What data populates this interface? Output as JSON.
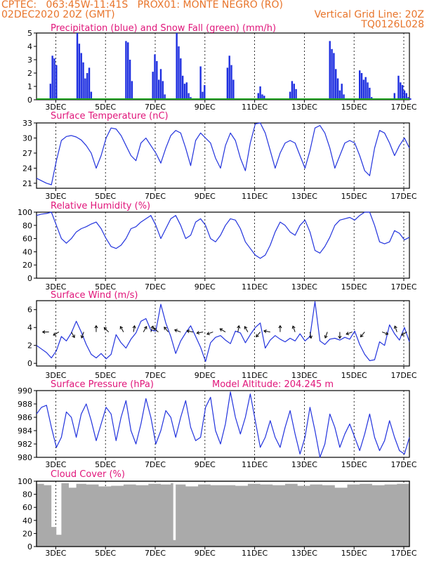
{
  "header": {
    "line1_left": "CPTEC:   063:45W-11:41S   PROX01: MONTE NEGRO (RO)",
    "line2_left": "02DEC2020 20Z (GMT)",
    "line2_right": "Vertical Grid Line: 20Z",
    "line3_right": "TQ0126L028"
  },
  "colors": {
    "header": "#e8742a",
    "title": "#e0157a",
    "precip": "#1e2fe0",
    "snow": "#1ea01e",
    "line": "#2233dd",
    "cloud": "#aaaaaa",
    "arrow": "#000000"
  },
  "x_axis": {
    "ticks": [
      "3DEC",
      "5DEC",
      "7DEC",
      "9DEC",
      "11DEC",
      "13DEC",
      "15DEC",
      "17DEC"
    ],
    "tick_positions_days": [
      3,
      5,
      7,
      9,
      11,
      13,
      15,
      17
    ],
    "range": [
      2.0,
      17.0
    ]
  },
  "chart_data": [
    {
      "id": "precip",
      "type": "bar",
      "title": "Precipitation (blue) and Snow Fall (green) (mm/h)",
      "ylim": [
        0,
        5
      ],
      "yticks": [
        0,
        1,
        2,
        3,
        4,
        5
      ],
      "series": [
        {
          "name": "Precipitation",
          "x": [
            2.56,
            2.64,
            2.72,
            2.8,
            3.64,
            3.72,
            3.8,
            3.88,
            3.96,
            4.04,
            4.12,
            4.2,
            5.6,
            5.68,
            5.76,
            5.84,
            6.68,
            6.76,
            6.84,
            6.92,
            7.0,
            7.08,
            7.16,
            7.64,
            7.72,
            7.8,
            7.88,
            7.96,
            8.04,
            8.12,
            8.2,
            8.6,
            8.68,
            8.76,
            9.68,
            9.76,
            9.84,
            9.92,
            10.92,
            11.0,
            11.08,
            11.16,
            12.2,
            12.28,
            12.36,
            12.44,
            13.8,
            13.88,
            13.96,
            14.04,
            14.12,
            14.2,
            14.28,
            14.36,
            15.0,
            15.08,
            15.16,
            15.24,
            15.32,
            15.4,
            15.48,
            15.56,
            15.64,
            16.4,
            16.48,
            16.56,
            16.64,
            16.72,
            16.8,
            16.88,
            16.96,
            17.04
          ],
          "values": [
            1.2,
            3.3,
            3.1,
            2.6,
            5.0,
            4.2,
            3.5,
            2.8,
            1.6,
            2.0,
            2.4,
            0.6,
            4.4,
            4.3,
            3.0,
            1.4,
            2.1,
            3.4,
            2.9,
            1.5,
            2.3,
            1.4,
            0.4,
            5.0,
            4.0,
            3.1,
            1.8,
            1.2,
            1.3,
            0.5,
            0.2,
            2.5,
            0.6,
            1.1,
            2.4,
            3.3,
            2.6,
            1.5,
            0.5,
            1.0,
            0.4,
            0.3,
            0.6,
            1.4,
            1.2,
            0.8,
            4.4,
            3.8,
            3.5,
            2.3,
            1.6,
            0.7,
            1.2,
            0.4,
            2.2,
            2.0,
            1.5,
            1.7,
            1.3,
            0.9,
            0.2,
            0.1,
            0.05,
            0.5,
            0.1,
            1.8,
            1.3,
            1.1,
            0.7,
            0.5,
            0.2,
            0.1
          ]
        },
        {
          "name": "Snow Fall",
          "x": [
            2.0,
            17.0
          ],
          "values": [
            0,
            0
          ]
        }
      ]
    },
    {
      "id": "temp",
      "type": "line",
      "title": "Surface Temperature (nC)",
      "ylim": [
        20,
        33
      ],
      "yticks": [
        21,
        24,
        27,
        30,
        33
      ],
      "x": [
        2.0,
        2.2,
        2.4,
        2.6,
        2.8,
        3.0,
        3.2,
        3.4,
        3.6,
        3.8,
        4.0,
        4.2,
        4.4,
        4.6,
        4.8,
        5.0,
        5.2,
        5.4,
        5.6,
        5.8,
        6.0,
        6.2,
        6.4,
        6.6,
        6.8,
        7.0,
        7.2,
        7.4,
        7.6,
        7.8,
        8.0,
        8.2,
        8.4,
        8.6,
        8.8,
        9.0,
        9.2,
        9.4,
        9.6,
        9.8,
        10.0,
        10.2,
        10.4,
        10.6,
        10.8,
        11.0,
        11.2,
        11.4,
        11.6,
        11.8,
        12.0,
        12.2,
        12.4,
        12.6,
        12.8,
        13.0,
        13.2,
        13.4,
        13.6,
        13.8,
        14.0,
        14.2,
        14.4,
        14.6,
        14.8,
        15.0,
        15.2,
        15.4,
        15.6,
        15.8,
        16.0,
        16.2,
        16.4,
        16.6,
        16.8,
        17.0
      ],
      "values": [
        22.0,
        21.5,
        21.0,
        20.7,
        25.5,
        29.5,
        30.3,
        30.5,
        30.2,
        29.6,
        28.5,
        27.0,
        24.0,
        26.5,
        30.0,
        32.0,
        31.8,
        30.5,
        28.5,
        26.5,
        25.5,
        29.0,
        30.0,
        28.5,
        27.0,
        25.0,
        28.0,
        30.5,
        31.5,
        31.0,
        28.0,
        24.5,
        29.5,
        31.0,
        30.0,
        29.0,
        26.0,
        24.0,
        28.5,
        31.0,
        29.5,
        26.0,
        23.5,
        29.0,
        32.8,
        33.0,
        31.0,
        27.5,
        24.0,
        27.0,
        29.0,
        29.5,
        29.0,
        26.5,
        24.0,
        27.5,
        32.0,
        32.5,
        31.0,
        28.0,
        24.0,
        26.5,
        29.0,
        29.5,
        29.0,
        26.5,
        23.5,
        22.5,
        28.0,
        31.5,
        31.0,
        29.0,
        26.5,
        28.5,
        30.0,
        28.0
      ]
    },
    {
      "id": "rh",
      "type": "line",
      "title": "Relative Humidity (%)",
      "ylim": [
        0,
        100
      ],
      "yticks": [
        0,
        20,
        40,
        60,
        80,
        100
      ],
      "x": [
        2.0,
        2.2,
        2.4,
        2.6,
        2.8,
        3.0,
        3.2,
        3.4,
        3.6,
        3.8,
        4.0,
        4.2,
        4.4,
        4.6,
        4.8,
        5.0,
        5.2,
        5.4,
        5.6,
        5.8,
        6.0,
        6.2,
        6.4,
        6.6,
        6.8,
        7.0,
        7.2,
        7.4,
        7.6,
        7.8,
        8.0,
        8.2,
        8.4,
        8.6,
        8.8,
        9.0,
        9.2,
        9.4,
        9.6,
        9.8,
        10.0,
        10.2,
        10.4,
        10.6,
        10.8,
        11.0,
        11.2,
        11.4,
        11.6,
        11.8,
        12.0,
        12.2,
        12.4,
        12.6,
        12.8,
        13.0,
        13.2,
        13.4,
        13.6,
        13.8,
        14.0,
        14.2,
        14.4,
        14.6,
        14.8,
        15.0,
        15.2,
        15.4,
        15.6,
        15.8,
        16.0,
        16.2,
        16.4,
        16.6,
        16.8,
        17.0
      ],
      "values": [
        95,
        97,
        98,
        100,
        80,
        60,
        53,
        60,
        70,
        75,
        78,
        82,
        85,
        75,
        60,
        48,
        45,
        50,
        60,
        75,
        78,
        85,
        90,
        95,
        80,
        60,
        75,
        90,
        95,
        80,
        60,
        65,
        85,
        90,
        80,
        60,
        55,
        65,
        80,
        90,
        88,
        75,
        55,
        45,
        35,
        30,
        35,
        50,
        70,
        85,
        80,
        70,
        65,
        80,
        88,
        70,
        42,
        38,
        48,
        62,
        80,
        88,
        90,
        92,
        88,
        95,
        100,
        100,
        80,
        55,
        52,
        55,
        72,
        68,
        58,
        62
      ]
    },
    {
      "id": "wind",
      "type": "line",
      "title": "Surface Wind (m/s)",
      "ylim": [
        -0.3,
        7.0
      ],
      "yticks": [
        0,
        2,
        4,
        6
      ],
      "x": [
        2.0,
        2.2,
        2.4,
        2.6,
        2.8,
        3.0,
        3.2,
        3.4,
        3.6,
        3.8,
        4.0,
        4.2,
        4.4,
        4.6,
        4.8,
        5.0,
        5.2,
        5.4,
        5.6,
        5.8,
        6.0,
        6.2,
        6.4,
        6.6,
        6.8,
        7.0,
        7.2,
        7.4,
        7.6,
        7.8,
        8.0,
        8.2,
        8.4,
        8.6,
        8.8,
        9.0,
        9.2,
        9.4,
        9.6,
        9.8,
        10.0,
        10.2,
        10.4,
        10.6,
        10.8,
        11.0,
        11.2,
        11.4,
        11.6,
        11.8,
        12.0,
        12.2,
        12.4,
        12.6,
        12.8,
        13.0,
        13.2,
        13.4,
        13.6,
        13.8,
        14.0,
        14.2,
        14.4,
        14.6,
        14.8,
        15.0,
        15.2,
        15.4,
        15.6,
        15.8,
        16.0,
        16.2,
        16.4,
        16.6,
        16.8,
        17.0
      ],
      "values": [
        2.0,
        1.6,
        1.2,
        0.6,
        1.4,
        3.0,
        2.5,
        3.4,
        4.7,
        3.5,
        2.1,
        1.0,
        0.6,
        1.1,
        0.5,
        1.0,
        3.2,
        2.3,
        1.7,
        2.7,
        3.4,
        4.7,
        5.0,
        3.7,
        3.6,
        6.6,
        4.5,
        3.0,
        1.1,
        2.5,
        3.4,
        4.2,
        3.0,
        1.8,
        0.2,
        2.3,
        2.9,
        3.1,
        2.6,
        2.2,
        3.6,
        3.4,
        2.3,
        3.2,
        4.0,
        4.5,
        1.7,
        2.6,
        3.1,
        2.7,
        2.4,
        2.8,
        2.5,
        3.3,
        2.5,
        3.0,
        6.9,
        2.5,
        2.1,
        2.7,
        2.8,
        2.6,
        2.9,
        2.7,
        3.6,
        2.1,
        1.0,
        0.3,
        0.4,
        2.4,
        2.0,
        4.3,
        3.3,
        2.6,
        4.0,
        2.4
      ],
      "arrows_x": [
        2.5,
        2.9,
        3.4,
        3.9,
        4.4,
        4.9,
        5.5,
        5.9,
        6.3,
        6.6,
        6.9,
        7.3,
        7.8,
        8.3,
        8.7,
        9.1,
        9.6,
        10.1,
        10.5,
        11.0,
        11.4,
        11.8,
        12.4,
        13.0,
        13.7,
        14.2,
        14.7,
        15.2,
        15.9,
        16.5,
        16.9
      ],
      "arrows_dir_deg": [
        180,
        210,
        300,
        250,
        90,
        135,
        120,
        80,
        60,
        70,
        140,
        130,
        160,
        170,
        190,
        200,
        150,
        80,
        120,
        230,
        170,
        90,
        110,
        280,
        250,
        270,
        200,
        230,
        340,
        110,
        210
      ]
    },
    {
      "id": "pres",
      "type": "line",
      "title": "Surface Pressure (hPa)",
      "annotation": "Model Altitude: 204.245 m",
      "ylim": [
        980,
        990
      ],
      "yticks": [
        980,
        982,
        984,
        986,
        988,
        990
      ],
      "x": [
        2.0,
        2.2,
        2.4,
        2.6,
        2.8,
        3.0,
        3.2,
        3.4,
        3.6,
        3.8,
        4.0,
        4.2,
        4.4,
        4.6,
        4.8,
        5.0,
        5.2,
        5.4,
        5.6,
        5.8,
        6.0,
        6.2,
        6.4,
        6.6,
        6.8,
        7.0,
        7.2,
        7.4,
        7.6,
        7.8,
        8.0,
        8.2,
        8.4,
        8.6,
        8.8,
        9.0,
        9.2,
        9.4,
        9.6,
        9.8,
        10.0,
        10.2,
        10.4,
        10.6,
        10.8,
        11.0,
        11.2,
        11.4,
        11.6,
        11.8,
        12.0,
        12.2,
        12.4,
        12.6,
        12.8,
        13.0,
        13.2,
        13.4,
        13.6,
        13.8,
        14.0,
        14.2,
        14.4,
        14.6,
        14.8,
        15.0,
        15.2,
        15.4,
        15.6,
        15.8,
        16.0,
        16.2,
        16.4,
        16.6,
        16.8,
        17.0
      ],
      "values": [
        986.5,
        987.5,
        987.8,
        984.5,
        981.5,
        983.0,
        986.8,
        986.0,
        983.0,
        986.5,
        988.0,
        985.5,
        982.5,
        985.0,
        987.5,
        986.5,
        982.5,
        986.0,
        988.5,
        984.0,
        982.0,
        985.0,
        988.8,
        986.0,
        982.0,
        984.0,
        987.0,
        986.0,
        983.0,
        986.0,
        988.5,
        984.5,
        982.5,
        983.0,
        987.5,
        989.0,
        984.0,
        982.0,
        985.0,
        989.8,
        986.0,
        983.5,
        986.0,
        989.5,
        985.5,
        981.5,
        983.0,
        985.5,
        983.0,
        981.5,
        984.5,
        987.0,
        983.5,
        980.5,
        983.0,
        987.5,
        984.0,
        980.0,
        982.0,
        986.5,
        984.5,
        981.5,
        983.5,
        985.0,
        983.0,
        981.0,
        983.5,
        986.5,
        983.0,
        981.0,
        982.5,
        985.5,
        983.0,
        981.0,
        980.5,
        983.0
      ]
    },
    {
      "id": "cloud",
      "type": "area",
      "title": "Cloud Cover (%)",
      "ylim": [
        0,
        100
      ],
      "yticks": [
        0,
        20,
        40,
        60,
        80,
        100
      ],
      "x": [
        2.0,
        2.3,
        2.6,
        2.8,
        3.0,
        3.3,
        3.6,
        4.0,
        4.5,
        5.0,
        5.5,
        6.0,
        6.5,
        7.0,
        7.4,
        7.5,
        7.6,
        8.0,
        8.5,
        9.0,
        10.0,
        10.5,
        11.0,
        11.5,
        12.0,
        12.5,
        13.0,
        13.5,
        14.0,
        14.5,
        15.0,
        15.5,
        16.0,
        16.5,
        17.0
      ],
      "values": [
        96,
        94,
        30,
        18,
        97,
        90,
        96,
        95,
        92,
        93,
        95,
        94,
        96,
        95,
        97,
        10,
        95,
        92,
        95,
        94,
        93,
        96,
        95,
        94,
        96,
        93,
        95,
        94,
        90,
        95,
        96,
        94,
        95,
        96,
        95
      ]
    }
  ]
}
